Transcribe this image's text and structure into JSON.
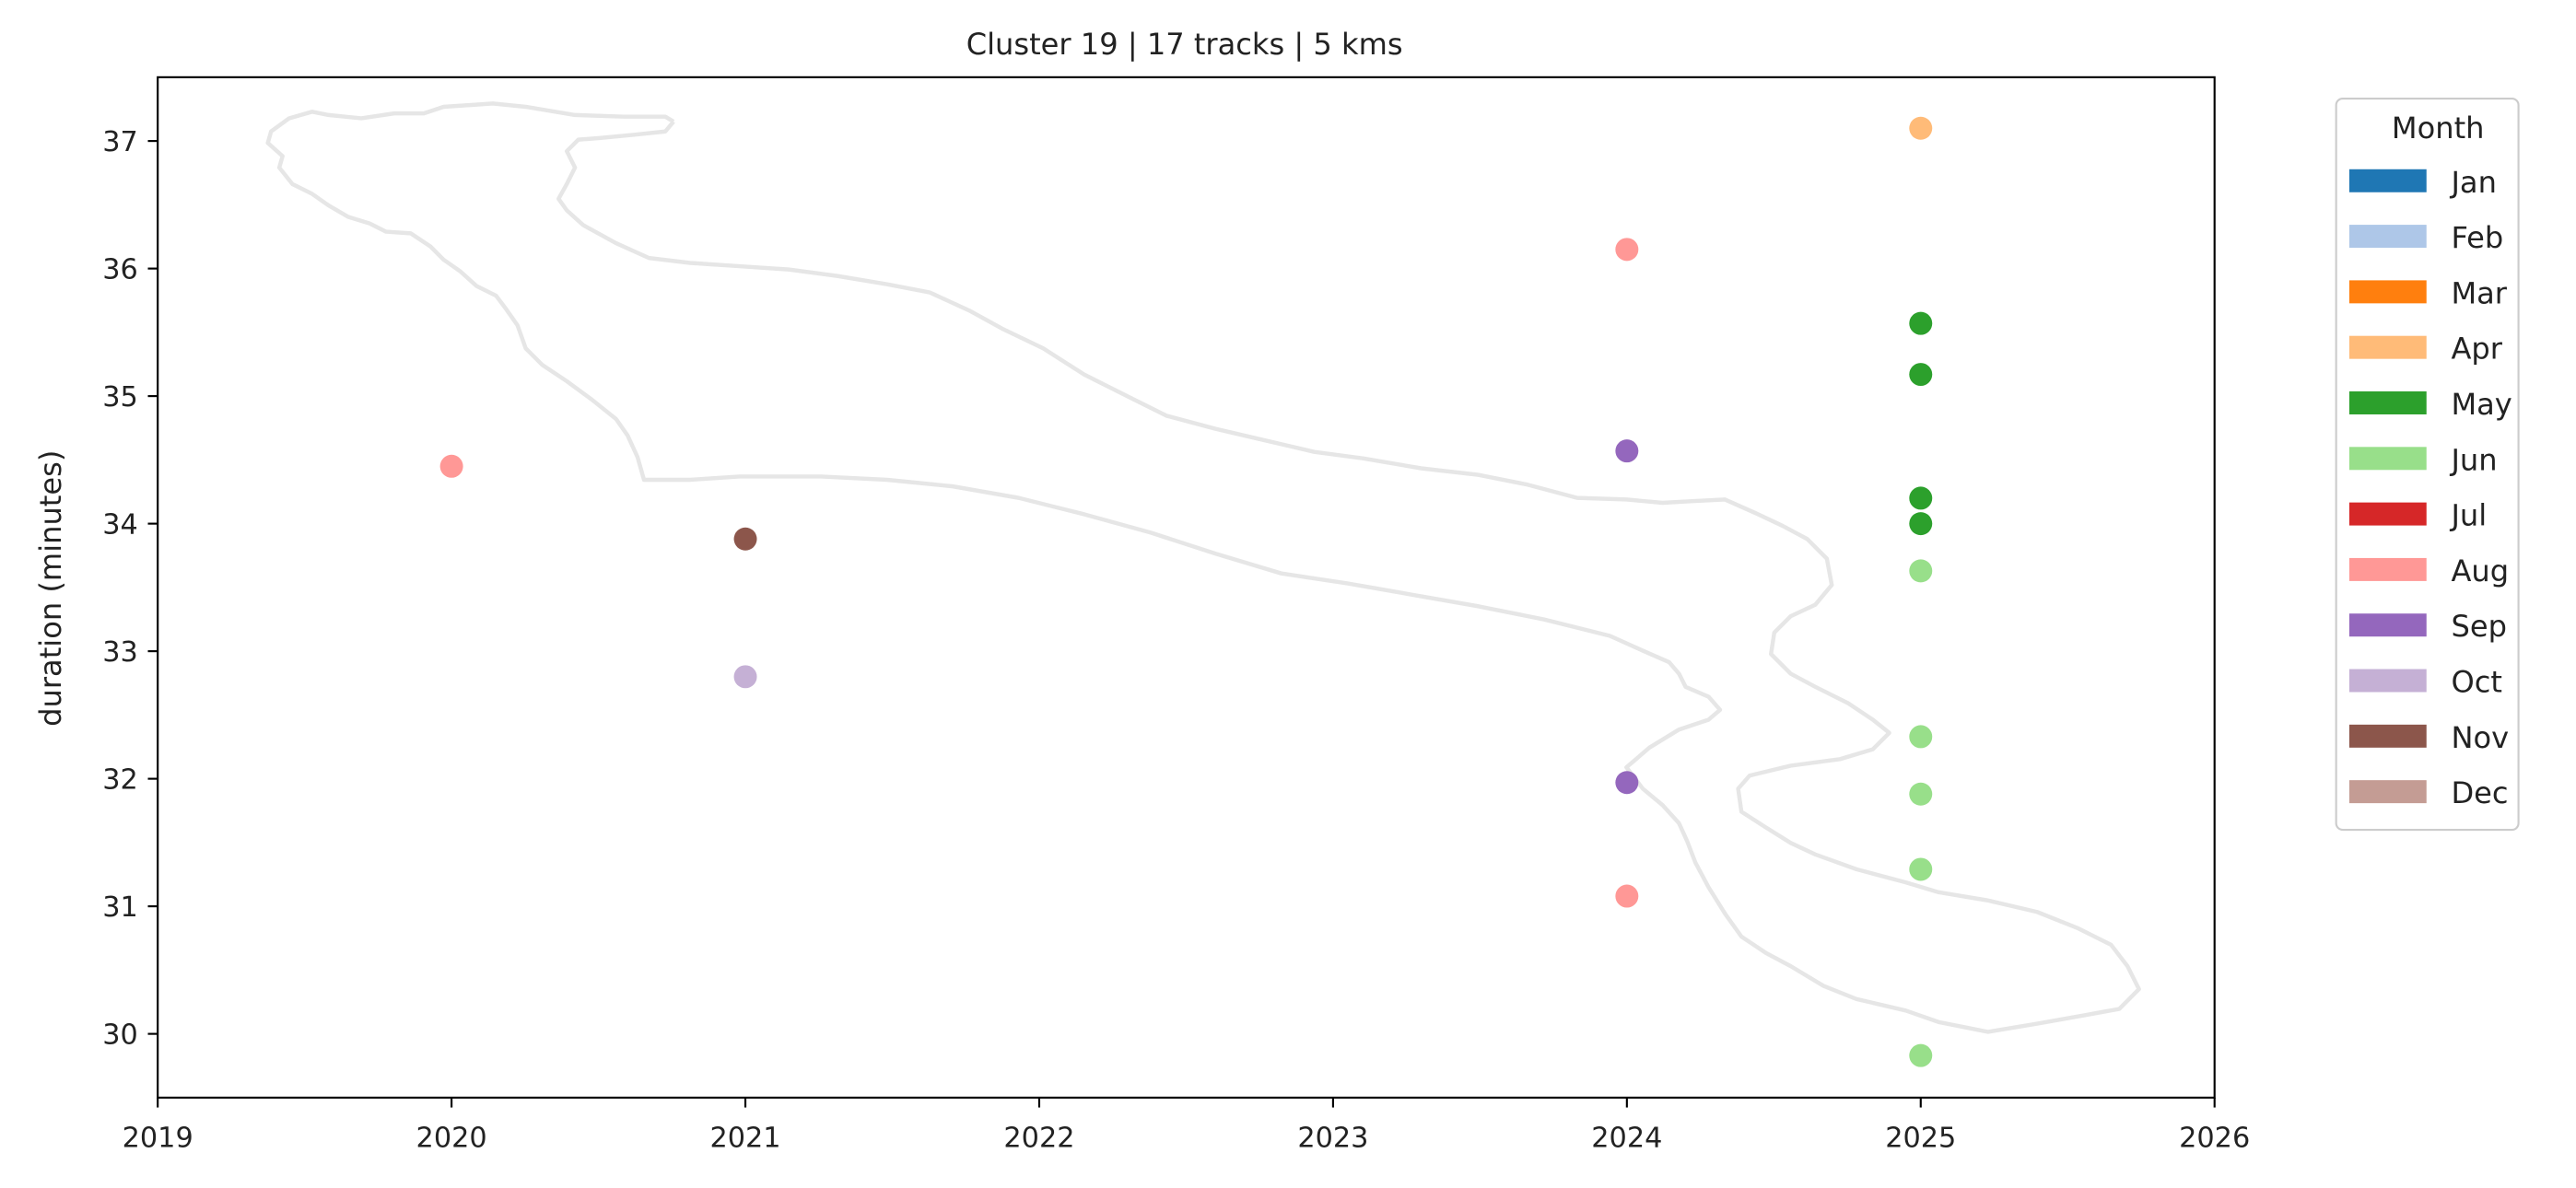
{
  "chart_data": {
    "type": "scatter",
    "title": "Cluster 19 | 17 tracks | 5 kms",
    "xlabel": "",
    "ylabel": "duration (minutes)",
    "xlim": [
      2019,
      2026
    ],
    "ylim": [
      29.5,
      37.5
    ],
    "x_ticks": [
      2019,
      2020,
      2021,
      2022,
      2023,
      2024,
      2025,
      2026
    ],
    "y_ticks": [
      30,
      31,
      32,
      33,
      34,
      35,
      36,
      37
    ],
    "grid": false,
    "background_shape": "route outline (light gray)",
    "legend": {
      "title": "Month",
      "placement": "outside-right",
      "entries": [
        {
          "label": "Jan",
          "color": "#1f77b4"
        },
        {
          "label": "Feb",
          "color": "#aec7e8"
        },
        {
          "label": "Mar",
          "color": "#ff7f0e"
        },
        {
          "label": "Apr",
          "color": "#ffbb78"
        },
        {
          "label": "May",
          "color": "#2ca02c"
        },
        {
          "label": "Jun",
          "color": "#98df8a"
        },
        {
          "label": "Jul",
          "color": "#d62728"
        },
        {
          "label": "Aug",
          "color": "#ff9896"
        },
        {
          "label": "Sep",
          "color": "#9467bd"
        },
        {
          "label": "Oct",
          "color": "#c5b0d5"
        },
        {
          "label": "Nov",
          "color": "#8c564b"
        },
        {
          "label": "Dec",
          "color": "#c49c94"
        }
      ]
    },
    "points": [
      {
        "x": 2020,
        "y": 34.45,
        "month": "Aug"
      },
      {
        "x": 2021,
        "y": 33.88,
        "month": "Nov"
      },
      {
        "x": 2021,
        "y": 32.8,
        "month": "Oct"
      },
      {
        "x": 2024,
        "y": 36.15,
        "month": "Aug"
      },
      {
        "x": 2024,
        "y": 34.57,
        "month": "Sep"
      },
      {
        "x": 2024,
        "y": 31.97,
        "month": "Sep"
      },
      {
        "x": 2024,
        "y": 31.08,
        "month": "Aug"
      },
      {
        "x": 2025,
        "y": 37.1,
        "month": "Apr"
      },
      {
        "x": 2025,
        "y": 35.57,
        "month": "May"
      },
      {
        "x": 2025,
        "y": 35.17,
        "month": "May"
      },
      {
        "x": 2025,
        "y": 34.2,
        "month": "May"
      },
      {
        "x": 2025,
        "y": 34.0,
        "month": "May"
      },
      {
        "x": 2025,
        "y": 33.63,
        "month": "Jun"
      },
      {
        "x": 2025,
        "y": 32.33,
        "month": "Jun"
      },
      {
        "x": 2025,
        "y": 31.88,
        "month": "Jun"
      },
      {
        "x": 2025,
        "y": 31.29,
        "month": "Jun"
      },
      {
        "x": 2025,
        "y": 29.83,
        "month": "Jun"
      }
    ]
  }
}
